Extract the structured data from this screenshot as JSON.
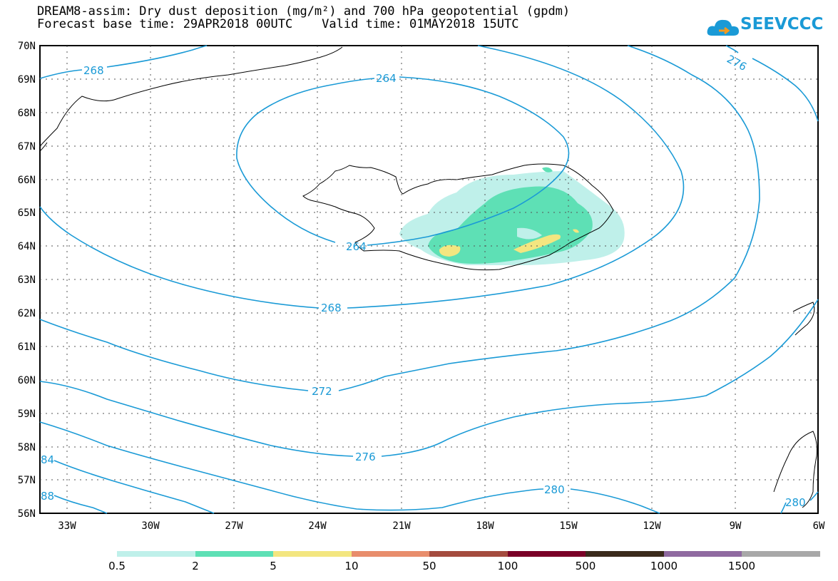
{
  "title": {
    "line1": "DREAM8-assim: Dry dust deposition (mg/m²) and 700 hPa geopotential (gpdm)",
    "line2": "Forecast base time: 29APR2018 00UTC    Valid time: 01MAY2018 15UTC"
  },
  "logo": {
    "text": "SEEVCCC",
    "color": "#1a9ad6"
  },
  "map": {
    "lat_labels": [
      "70N",
      "69N",
      "68N",
      "67N",
      "66N",
      "65N",
      "64N",
      "63N",
      "62N",
      "61N",
      "60N",
      "59N",
      "58N",
      "57N",
      "56N"
    ],
    "lon_labels": [
      "33W",
      "30W",
      "27W",
      "24W",
      "21W",
      "18W",
      "15W",
      "12W",
      "9W",
      "6W"
    ],
    "contour_color": "#1a9ad6",
    "contour_labels": [
      "268",
      "264",
      "276",
      "264",
      "268",
      "272",
      "276",
      "280",
      "84",
      "88",
      "280"
    ]
  },
  "legend": {
    "colors": [
      "#bff0ea",
      "#5ee0b5",
      "#f3e680",
      "#e88d6c",
      "#a44b3e",
      "#7a0027",
      "#3a2a1c",
      "#8f6aa0",
      "#a8a8a8"
    ],
    "labels": [
      "0.5",
      "2",
      "5",
      "10",
      "50",
      "100",
      "500",
      "1000",
      "1500"
    ]
  }
}
